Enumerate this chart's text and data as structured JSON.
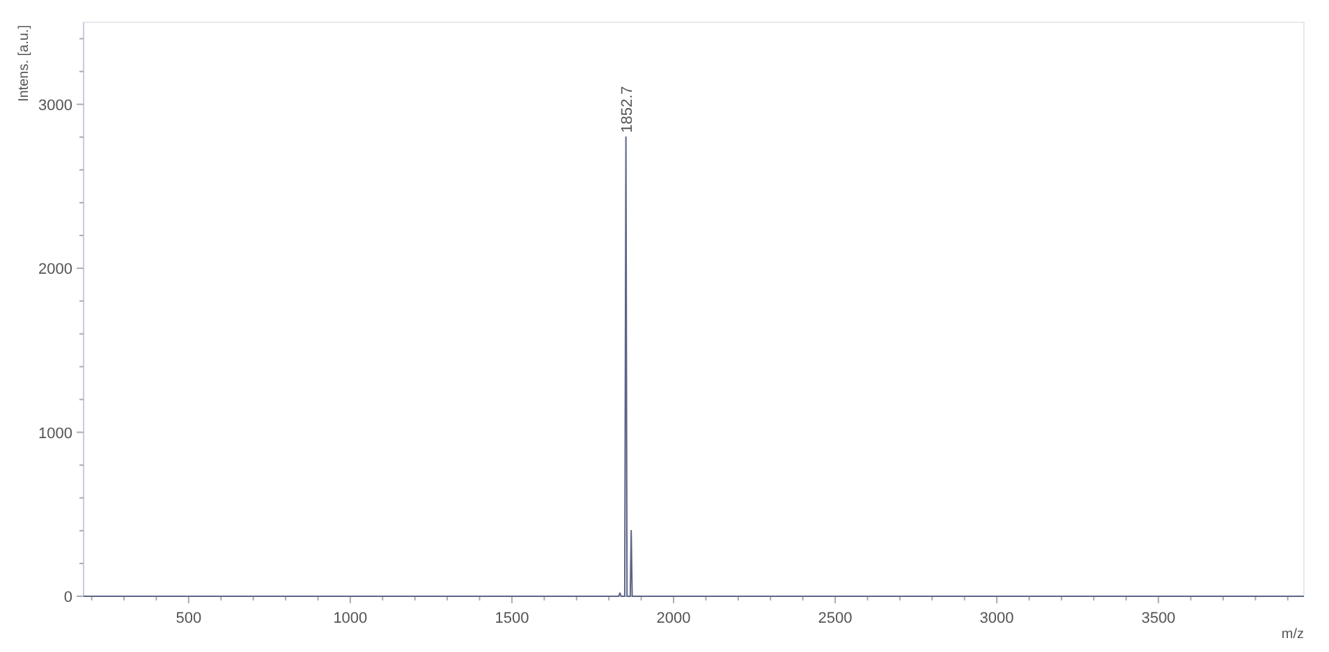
{
  "chart_data": {
    "type": "line",
    "xlabel": "m/z",
    "ylabel": "Intens. [a.u.]",
    "xlim": [
      175,
      3950
    ],
    "ylim": [
      0,
      3500
    ],
    "xticks": [
      {
        "value": 200,
        "label": null
      },
      {
        "value": 300,
        "label": null
      },
      {
        "value": 400,
        "label": null
      },
      500,
      {
        "value": 600,
        "label": null
      },
      {
        "value": 700,
        "label": null
      },
      {
        "value": 800,
        "label": null
      },
      {
        "value": 900,
        "label": null
      },
      1000,
      {
        "value": 1100,
        "label": null
      },
      {
        "value": 1200,
        "label": null
      },
      {
        "value": 1300,
        "label": null
      },
      {
        "value": 1400,
        "label": null
      },
      1500,
      {
        "value": 1600,
        "label": null
      },
      {
        "value": 1700,
        "label": null
      },
      {
        "value": 1800,
        "label": null
      },
      {
        "value": 1900,
        "label": null
      },
      2000,
      {
        "value": 2100,
        "label": null
      },
      {
        "value": 2200,
        "label": null
      },
      {
        "value": 2300,
        "label": null
      },
      {
        "value": 2400,
        "label": null
      },
      2500,
      {
        "value": 2600,
        "label": null
      },
      {
        "value": 2700,
        "label": null
      },
      {
        "value": 2800,
        "label": null
      },
      {
        "value": 2900,
        "label": null
      },
      3000,
      {
        "value": 3100,
        "label": null
      },
      {
        "value": 3200,
        "label": null
      },
      {
        "value": 3300,
        "label": null
      },
      {
        "value": 3400,
        "label": null
      },
      3500,
      {
        "value": 3600,
        "label": null
      },
      {
        "value": 3700,
        "label": null
      },
      {
        "value": 3800,
        "label": null
      },
      {
        "value": 3900,
        "label": null
      }
    ],
    "yticks": [
      0,
      {
        "value": 200,
        "label": null
      },
      {
        "value": 400,
        "label": null
      },
      {
        "value": 600,
        "label": null
      },
      {
        "value": 800,
        "label": null
      },
      1000,
      {
        "value": 1200,
        "label": null
      },
      {
        "value": 1400,
        "label": null
      },
      {
        "value": 1600,
        "label": null
      },
      {
        "value": 1800,
        "label": null
      },
      2000,
      {
        "value": 2200,
        "label": null
      },
      {
        "value": 2400,
        "label": null
      },
      {
        "value": 2600,
        "label": null
      },
      {
        "value": 2800,
        "label": null
      },
      3000,
      {
        "value": 3200,
        "label": null
      },
      {
        "value": 3400,
        "label": null
      }
    ],
    "series": [
      {
        "color": "#5d6387",
        "x": [
          175,
          1830,
          1834,
          1838,
          1849,
          1852.7,
          1856,
          1866,
          1869,
          1872,
          3950
        ],
        "values": [
          0,
          0,
          20,
          0,
          0,
          2800,
          0,
          0,
          400,
          0,
          0
        ]
      }
    ],
    "annotations": [
      {
        "text": "1852.7",
        "x": 1852.7,
        "y": 2800
      }
    ],
    "grid": false
  }
}
